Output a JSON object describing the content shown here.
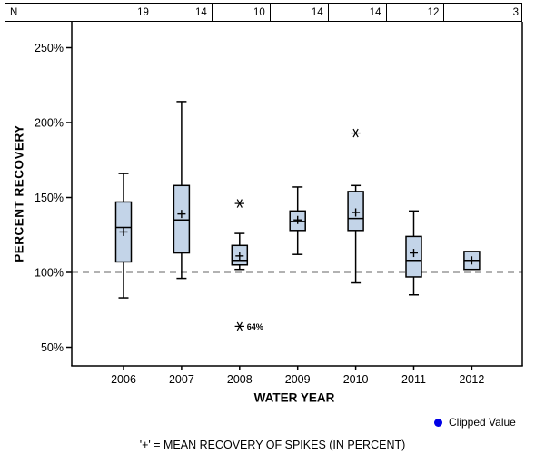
{
  "chart_data": {
    "type": "boxplot",
    "title": "",
    "xlabel": "WATER YEAR",
    "ylabel": "PERCENT RECOVERY",
    "y_ticks": [
      50,
      100,
      150,
      200,
      250
    ],
    "y_tick_suffix": "%",
    "ylim": [
      38,
      267
    ],
    "grid": false,
    "reference_line": {
      "value": 100,
      "style": "dashed",
      "color": "#999999"
    },
    "n_row": {
      "label": "N",
      "values": [
        19,
        14,
        10,
        14,
        14,
        12,
        3
      ]
    },
    "categories": [
      "2006",
      "2007",
      "2008",
      "2009",
      "2010",
      "2011",
      "2012"
    ],
    "boxes": [
      {
        "year": "2006",
        "n": 19,
        "whisker_low": 83,
        "q1": 107,
        "median": 130,
        "mean": 127,
        "q3": 147,
        "whisker_high": 166,
        "outliers": []
      },
      {
        "year": "2007",
        "n": 14,
        "whisker_low": 96,
        "q1": 113,
        "median": 135,
        "mean": 139,
        "q3": 158,
        "whisker_high": 214,
        "outliers": []
      },
      {
        "year": "2008",
        "n": 10,
        "whisker_low": 102,
        "q1": 105,
        "median": 108,
        "mean": 111,
        "q3": 118,
        "whisker_high": 126,
        "outliers": [
          {
            "value": 146
          },
          {
            "value": 64,
            "label": "64%"
          }
        ]
      },
      {
        "year": "2009",
        "n": 14,
        "whisker_low": 112,
        "q1": 128,
        "median": 134,
        "mean": 135,
        "q3": 141,
        "whisker_high": 157,
        "outliers": []
      },
      {
        "year": "2010",
        "n": 14,
        "whisker_low": 93,
        "q1": 128,
        "median": 136,
        "mean": 140,
        "q3": 154,
        "whisker_high": 158,
        "outliers": [
          {
            "value": 193
          }
        ]
      },
      {
        "year": "2011",
        "n": 12,
        "whisker_low": 85,
        "q1": 97,
        "median": 108,
        "mean": 113,
        "q3": 124,
        "whisker_high": 141,
        "outliers": []
      },
      {
        "year": "2012",
        "n": 3,
        "whisker_low": 102,
        "q1": 102,
        "median": 108,
        "mean": 108,
        "q3": 114,
        "whisker_high": 114,
        "outliers": []
      }
    ],
    "box_fill": "#c3d4e8",
    "box_stroke": "#000000",
    "mean_marker": "+",
    "outlier_marker": "*",
    "legend_position": "bottom-right"
  },
  "legend": {
    "label": "Clipped Value",
    "marker": "filled-circle",
    "marker_color": "#0000e6"
  },
  "footnote": "'+' = MEAN RECOVERY OF SPIKES (IN PERCENT)"
}
